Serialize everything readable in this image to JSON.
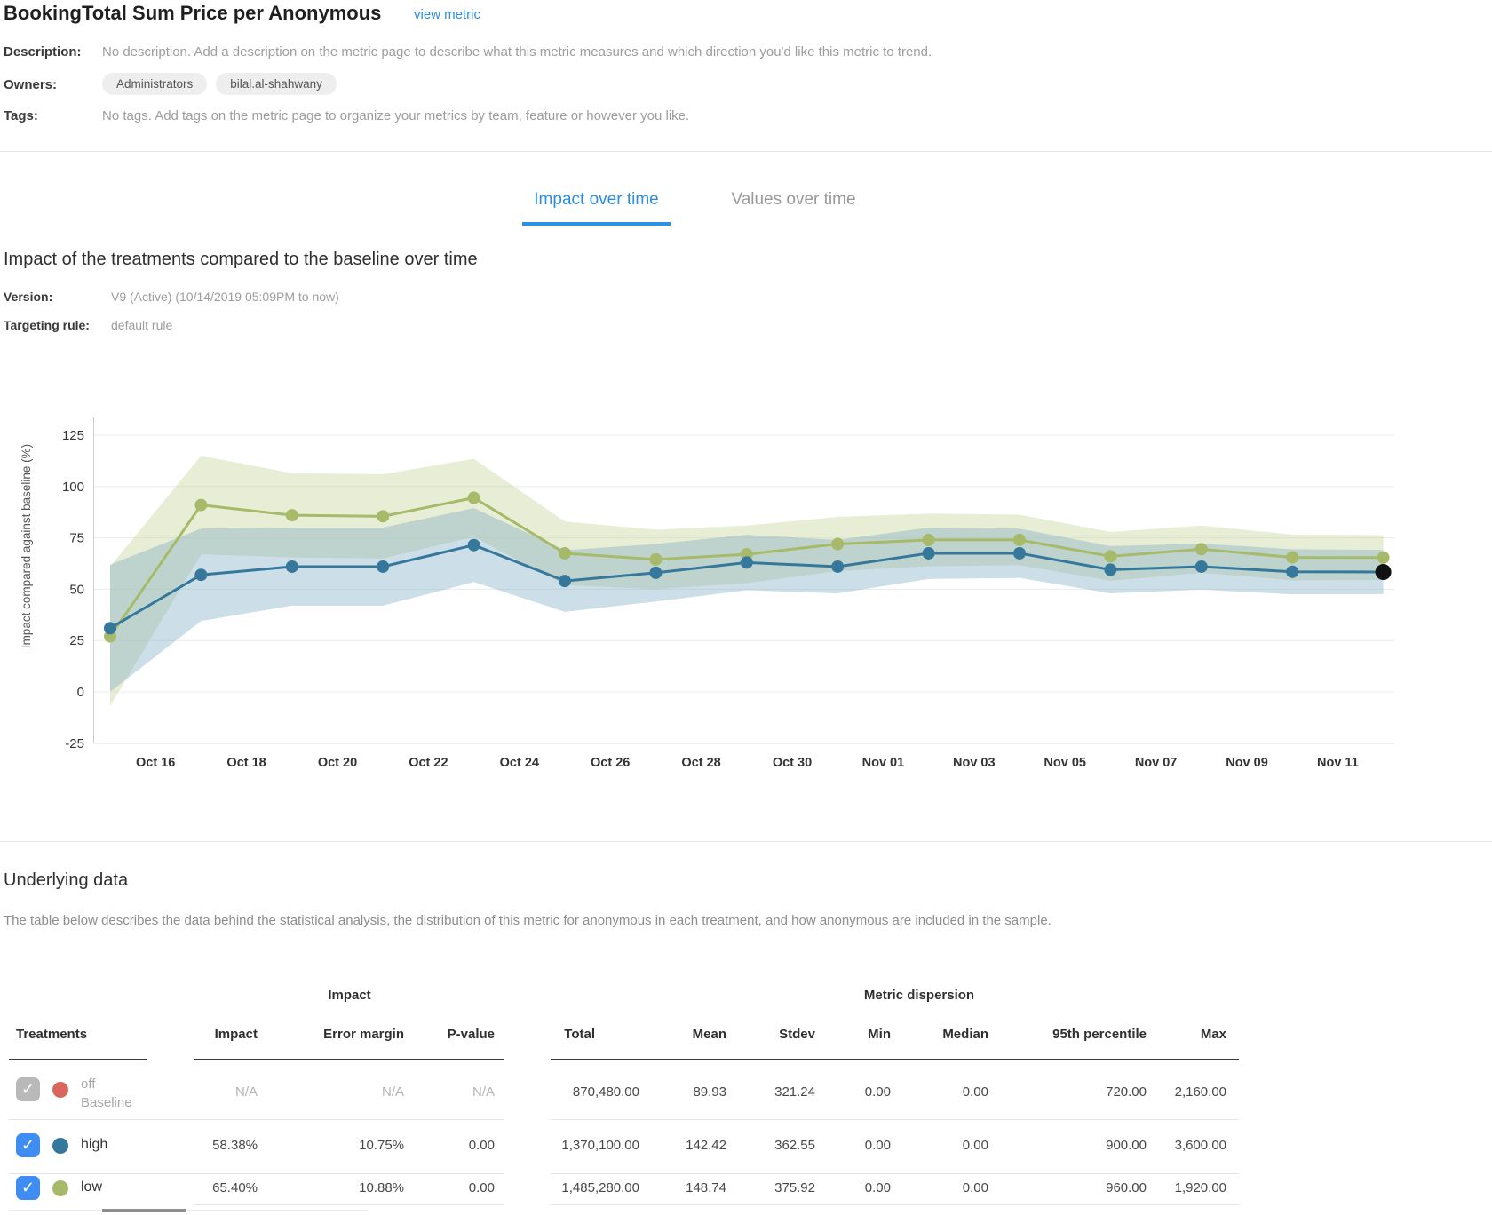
{
  "header": {
    "title": "BookingTotal Sum Price per Anonymous",
    "view_metric_label": "view metric"
  },
  "meta": {
    "description_label": "Description:",
    "description": "No description. Add a description on the metric page to describe what this metric measures and which direction you'd like this metric to trend.",
    "owners_label": "Owners:",
    "owners": [
      "Administrators",
      "bilal.al-shahwany"
    ],
    "tags_label": "Tags:",
    "tags": "No tags. Add tags on the metric page to organize your metrics by team, feature or however you like."
  },
  "tabs": [
    {
      "label": "Impact over time",
      "active": true
    },
    {
      "label": "Values over time",
      "active": false
    }
  ],
  "impact_section": {
    "title": "Impact of the treatments compared to the baseline over time",
    "version_label": "Version:",
    "version": "V9 (Active) (10/14/2019 05:09PM to now)",
    "targeting_rule_label": "Targeting rule:",
    "targeting_rule": "default rule"
  },
  "chart_data": {
    "type": "line",
    "title": "Impact of the treatments compared to the baseline over time",
    "ylabel": "Impact compared against baseline (%)",
    "ylim": [
      -25,
      125
    ],
    "yticks": [
      125,
      100,
      75,
      50,
      25,
      0,
      -25
    ],
    "grid": true,
    "legend_position": "none",
    "x_unit": "days since Oct 15",
    "xtick_labels": [
      "Oct 16",
      "Oct 18",
      "Oct 20",
      "Oct 22",
      "Oct 24",
      "Oct 26",
      "Oct 28",
      "Oct 30",
      "Nov 01",
      "Nov 03",
      "Nov 05",
      "Nov 07",
      "Nov 09",
      "Nov 11"
    ],
    "xtick_days": [
      1,
      3,
      5,
      7,
      9,
      11,
      13,
      15,
      17,
      19,
      21,
      23,
      25,
      27
    ],
    "x_days": [
      0,
      2,
      4,
      6,
      8,
      10,
      12,
      14,
      16,
      18,
      20,
      22,
      24,
      26,
      28
    ],
    "series": [
      {
        "name": "low",
        "color": "#a6ba6a",
        "band_color": "#c3d193",
        "values": [
          27,
          91,
          86,
          85.5,
          94.5,
          67.5,
          64.5,
          67,
          72,
          74,
          74,
          66,
          69.5,
          65.5,
          65.4
        ],
        "error_margins": [
          34,
          24,
          20.5,
          20.5,
          19,
          15.5,
          14.5,
          14,
          13.2,
          12.8,
          12.3,
          11.9,
          11.5,
          11.1,
          10.88
        ]
      },
      {
        "name": "high",
        "color": "#36789b",
        "band_color": "#7aa7c0",
        "values": [
          31,
          57,
          61,
          61,
          71.5,
          54,
          58,
          63,
          61,
          67.5,
          67.5,
          59.5,
          61,
          58.5,
          58.38
        ],
        "error_margins": [
          31,
          22.5,
          19,
          19,
          18,
          15,
          14,
          13.5,
          13,
          12.5,
          12,
          11.5,
          11.2,
          11,
          10.75
        ]
      }
    ],
    "current_point": {
      "series": "high",
      "x_day": 28,
      "value": 58.38,
      "color": "#111111"
    }
  },
  "underlying": {
    "title": "Underlying data",
    "description": "The table below describes the data behind the statistical analysis, the distribution of this metric for anonymous in each treatment, and how anonymous are included in the sample.",
    "table": {
      "treatments_header": "Treatments",
      "group_headers": [
        "Impact",
        "Metric dispersion"
      ],
      "columns": [
        "Impact",
        "Error margin",
        "P-value",
        "Total",
        "Mean",
        "Stdev",
        "Min",
        "Median",
        "95th percentile",
        "Max"
      ],
      "rows": [
        {
          "name": "off",
          "subtitle": "Baseline",
          "dot_color": "#d9655f",
          "checked": true,
          "checkbox_color": "#b9b9b9",
          "muted": true,
          "values": [
            "N/A",
            "N/A",
            "N/A",
            "870,480.00",
            "89.93",
            "321.24",
            "0.00",
            "0.00",
            "720.00",
            "2,160.00"
          ]
        },
        {
          "name": "high",
          "subtitle": "",
          "dot_color": "#36789b",
          "checked": true,
          "checkbox_color": "#3f8cf3",
          "muted": false,
          "values": [
            "58.38%",
            "10.75%",
            "0.00",
            "1,370,100.00",
            "142.42",
            "362.55",
            "0.00",
            "0.00",
            "900.00",
            "3,600.00"
          ]
        },
        {
          "name": "low",
          "subtitle": "",
          "dot_color": "#a6ba6a",
          "checked": true,
          "checkbox_color": "#3f8cf3",
          "muted": false,
          "values": [
            "65.40%",
            "10.88%",
            "0.00",
            "1,485,280.00",
            "148.74",
            "375.92",
            "0.00",
            "0.00",
            "960.00",
            "1,920.00"
          ]
        }
      ]
    }
  },
  "colors": {
    "accent_blue": "#2c8de4",
    "series_high": "#36789b",
    "series_low": "#a6ba6a",
    "baseline_red": "#d9655f",
    "current_point_black": "#111111"
  }
}
